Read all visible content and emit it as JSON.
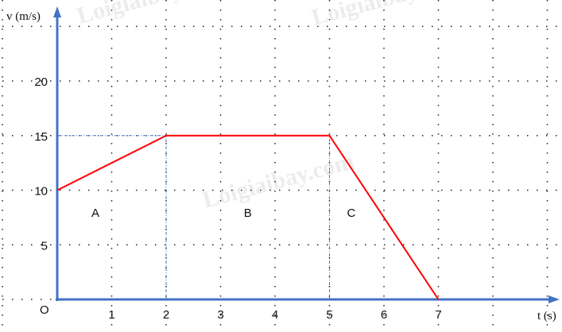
{
  "chart_data": {
    "type": "line",
    "xlabel": "t (s)",
    "ylabel": "v (m/s)",
    "origin_label": "O",
    "xlim": [
      0,
      9
    ],
    "ylim": [
      0,
      25
    ],
    "x_ticks": [
      1,
      2,
      3,
      4,
      5,
      6,
      7
    ],
    "y_ticks": [
      5,
      10,
      15,
      20
    ],
    "grid": "dotted",
    "series": [
      {
        "color": "#ff0000",
        "points": [
          [
            0,
            10
          ],
          [
            2,
            15
          ],
          [
            5,
            15
          ],
          [
            7,
            0
          ]
        ]
      }
    ],
    "guides": [
      {
        "from": [
          0,
          15
        ],
        "to": [
          2,
          15
        ]
      },
      {
        "from": [
          2,
          0
        ],
        "to": [
          2,
          15
        ]
      },
      {
        "from": [
          5,
          0
        ],
        "to": [
          5,
          15
        ]
      }
    ],
    "region_labels": [
      {
        "text": "A",
        "x": 0.7,
        "v": 8
      },
      {
        "text": "B",
        "x": 3.5,
        "v": 8
      },
      {
        "text": "C",
        "x": 5.4,
        "v": 8
      }
    ],
    "axis_color": "#4472c4",
    "watermark": "Loigiaibay.com"
  }
}
